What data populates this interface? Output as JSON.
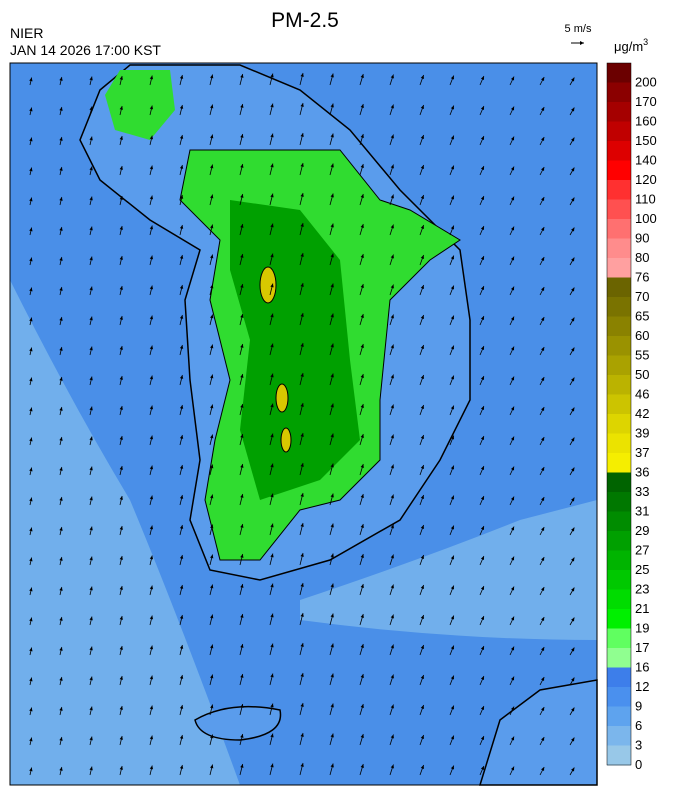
{
  "header": {
    "title": "PM-2.5",
    "agency": "NIER",
    "timestamp": "JAN 14 2026 17:00 KST",
    "wind_scale": "5 m/s"
  },
  "colorbar": {
    "unit": "μg/m",
    "unit_exponent": "3",
    "levels": [
      {
        "value": 200,
        "color": "#6b0000"
      },
      {
        "value": 170,
        "color": "#8b0000"
      },
      {
        "value": 160,
        "color": "#a50000"
      },
      {
        "value": 150,
        "color": "#c00000"
      },
      {
        "value": 140,
        "color": "#dd0000"
      },
      {
        "value": 120,
        "color": "#ff0000"
      },
      {
        "value": 110,
        "color": "#ff3030"
      },
      {
        "value": 100,
        "color": "#ff5050"
      },
      {
        "value": 90,
        "color": "#ff7070"
      },
      {
        "value": 80,
        "color": "#ff8c8c"
      },
      {
        "value": 76,
        "color": "#ffa0a0"
      },
      {
        "value": 70,
        "color": "#6b6400"
      },
      {
        "value": 65,
        "color": "#7a7300"
      },
      {
        "value": 60,
        "color": "#8a8200"
      },
      {
        "value": 55,
        "color": "#9a9200"
      },
      {
        "value": 50,
        "color": "#aaa200"
      },
      {
        "value": 46,
        "color": "#bbb300"
      },
      {
        "value": 42,
        "color": "#ccc400"
      },
      {
        "value": 39,
        "color": "#ddd500"
      },
      {
        "value": 37,
        "color": "#ebe300"
      },
      {
        "value": 36,
        "color": "#f5ee00"
      },
      {
        "value": 33,
        "color": "#006400"
      },
      {
        "value": 31,
        "color": "#007800"
      },
      {
        "value": 29,
        "color": "#008c00"
      },
      {
        "value": 27,
        "color": "#00a000"
      },
      {
        "value": 25,
        "color": "#00b400"
      },
      {
        "value": 23,
        "color": "#00c800"
      },
      {
        "value": 21,
        "color": "#00dc00"
      },
      {
        "value": 19,
        "color": "#00f000"
      },
      {
        "value": 17,
        "color": "#60ff60"
      },
      {
        "value": 16,
        "color": "#90ff90"
      },
      {
        "value": 12,
        "color": "#3d7eea"
      },
      {
        "value": 9,
        "color": "#4a90ee"
      },
      {
        "value": 6,
        "color": "#5ea3ee"
      },
      {
        "value": 3,
        "color": "#7bb6ec"
      },
      {
        "value": 0,
        "color": "#98c8e8"
      }
    ]
  }
}
